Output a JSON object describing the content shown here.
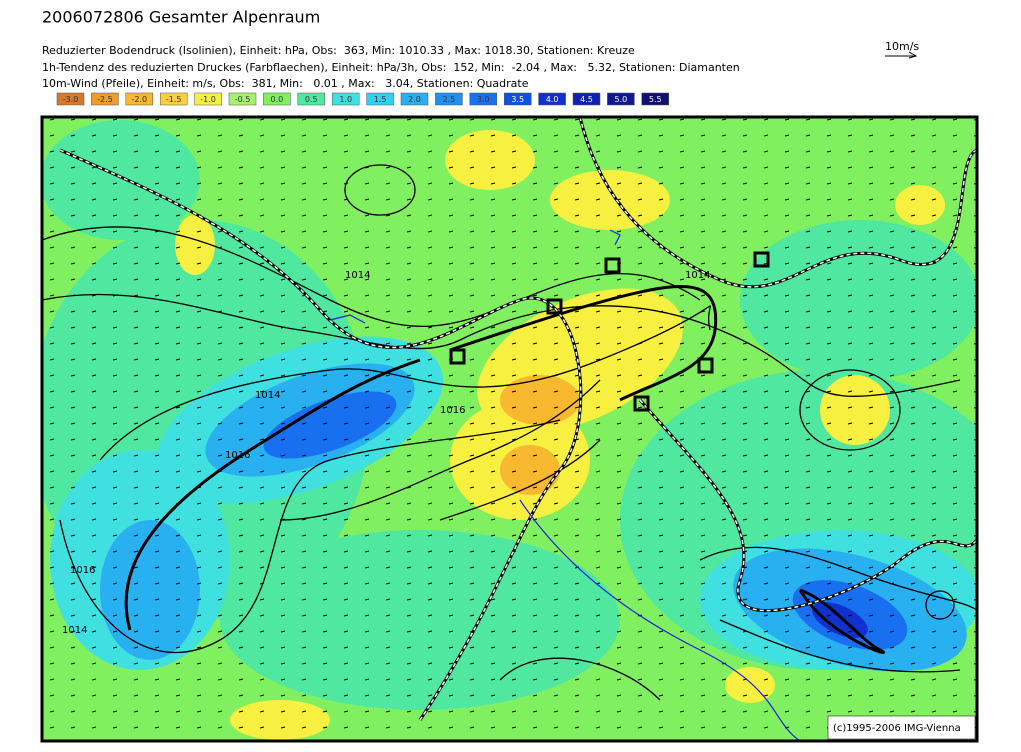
{
  "header": {
    "title": "2006072806 Gesamter Alpenraum",
    "lines": [
      "Reduzierter Bodendruck (Isolinien), Einheit: hPa, Obs:  363, Min: 1010.33 , Max: 1018.30, Stationen: Kreuze",
      "1h-Tendenz des reduzierten Druckes (Farbflaechen), Einheit: hPa/3h, Obs:  152, Min:  -2.04 , Max:   5.32, Stationen: Diamanten",
      "10m-Wind (Pfeile), Einheit: m/s, Obs:  381, Min:   0.01 , Max:   3.04, Stationen: Quadrate"
    ]
  },
  "wind_scale": "10m/s",
  "legend": [
    {
      "label": "-3.0",
      "color": "#d8782a"
    },
    {
      "label": "-2.5",
      "color": "#f09a30"
    },
    {
      "label": "-2.0",
      "color": "#f8b830"
    },
    {
      "label": "-1.5",
      "color": "#f8d040"
    },
    {
      "label": "-1.0",
      "color": "#f8f040"
    },
    {
      "label": "-0.5",
      "color": "#a8f070"
    },
    {
      "label": "0.0",
      "color": "#80f060"
    },
    {
      "label": "0.5",
      "color": "#50e8a0"
    },
    {
      "label": "1.0",
      "color": "#40e0e0"
    },
    {
      "label": "1.5",
      "color": "#30d0f0"
    },
    {
      "label": "2.0",
      "color": "#28b0f0"
    },
    {
      "label": "2.5",
      "color": "#2090f0"
    },
    {
      "label": "3.0",
      "color": "#1870f0"
    },
    {
      "label": "3.5",
      "color": "#1050e0"
    },
    {
      "label": "4.0",
      "color": "#1030d0"
    },
    {
      "label": "4.5",
      "color": "#1020b0"
    },
    {
      "label": "5.0",
      "color": "#101890"
    },
    {
      "label": "5.5",
      "color": "#101070"
    }
  ],
  "map": {
    "contour_labels": [
      "1014",
      "1016",
      "1014",
      "1014",
      "1016",
      "1016",
      "1014"
    ],
    "copyright": "(c)1995-2006 IMG-Vienna"
  }
}
